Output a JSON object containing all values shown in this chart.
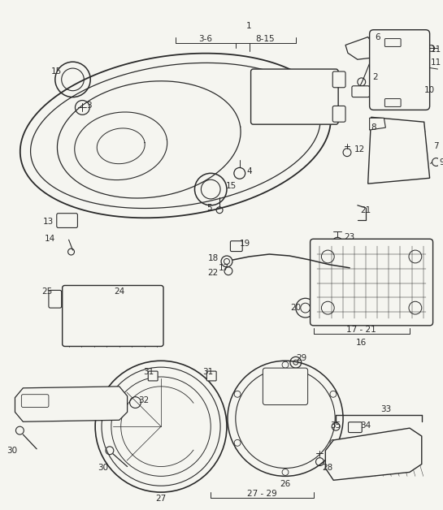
{
  "bg_color": "#f5f5f0",
  "fig_width": 5.45,
  "fig_height": 6.28,
  "dpi": 100,
  "color": "#2a2a2a",
  "lw_main": 1.0,
  "lw_thin": 0.6,
  "lw_label": 0.5
}
